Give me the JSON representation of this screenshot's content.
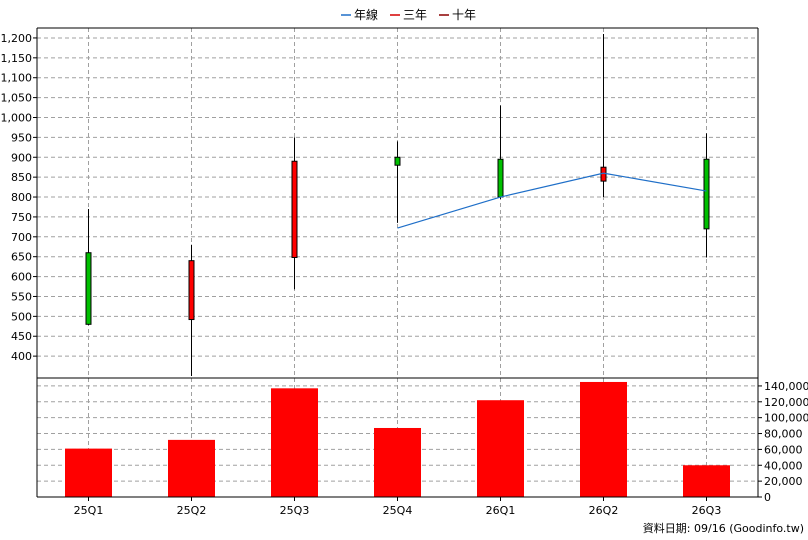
{
  "legend": [
    {
      "label": "年線",
      "color": "#1f6fc8"
    },
    {
      "label": "三年",
      "color": "#d40000"
    },
    {
      "label": "十年",
      "color": "#8b0000"
    }
  ],
  "footer": "資料日期: 09/16  (Goodinfo.tw)",
  "chart_data": [
    {
      "type": "candlestick",
      "x": [
        "25Q1",
        "25Q2",
        "25Q3",
        "25Q4",
        "26Q1",
        "26Q2",
        "26Q3"
      ],
      "ylim": [
        345,
        1225
      ],
      "yticks": [
        400,
        450,
        500,
        550,
        600,
        650,
        700,
        750,
        800,
        850,
        900,
        950,
        1000,
        1050,
        1100,
        1150,
        1200
      ],
      "grid": true,
      "candles": [
        {
          "open": 480,
          "close": 660,
          "high": 770,
          "low": 478,
          "color": "#00c000"
        },
        {
          "open": 640,
          "close": 492,
          "high": 680,
          "low": 350,
          "color": "#ff0000"
        },
        {
          "open": 890,
          "close": 648,
          "high": 950,
          "low": 568,
          "color": "#ff0000"
        },
        {
          "open": 880,
          "close": 900,
          "high": 940,
          "low": 735,
          "color": "#00c000"
        },
        {
          "open": 800,
          "close": 895,
          "high": 1030,
          "low": 795,
          "color": "#00c000"
        },
        {
          "open": 875,
          "close": 840,
          "high": 1210,
          "low": 800,
          "color": "#ff0000"
        },
        {
          "open": 720,
          "close": 895,
          "high": 960,
          "low": 648,
          "color": "#00c000"
        }
      ],
      "series": [
        {
          "name": "年線",
          "color": "#1f6fc8",
          "values": [
            null,
            null,
            null,
            722,
            800,
            860,
            815
          ]
        }
      ]
    },
    {
      "type": "bar",
      "categories": [
        "25Q1",
        "25Q2",
        "25Q3",
        "25Q4",
        "26Q1",
        "26Q2",
        "26Q3"
      ],
      "values": [
        61000,
        72000,
        137000,
        87000,
        122000,
        145000,
        40000
      ],
      "ylim": [
        0,
        150000
      ],
      "yticks": [
        0,
        20000,
        40000,
        60000,
        80000,
        100000,
        120000,
        140000
      ],
      "color": "#ff0000",
      "grid": true
    }
  ]
}
